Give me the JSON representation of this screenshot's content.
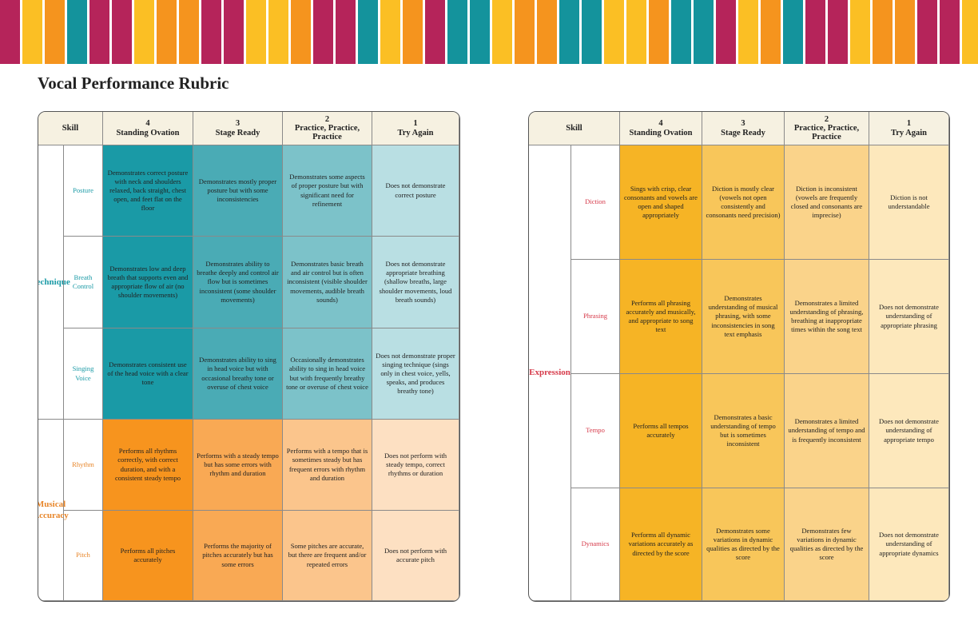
{
  "title": "Vocal Performance Rubric",
  "tables": [
    {
      "header": {
        "skill": "Skill",
        "levels": [
          {
            "number": 4,
            "label": "Standing Ovation"
          },
          {
            "number": 3,
            "label": "Stage Ready"
          },
          {
            "number": 2,
            "label": "Practice, Practice, Practice"
          },
          {
            "number": 1,
            "label": "Try Again"
          }
        ]
      },
      "groups": [
        {
          "name": "Technique",
          "rows": [
            {
              "skill": "Posture",
              "cells": [
                "Demonstrates correct posture with neck and shoulders relaxed, back straight, chest open, and feet flat on the floor",
                "Demonstrates mostly proper posture but with some inconsistencies",
                "Demonstrates some aspects of proper posture but with significant need for refinement",
                "Does not demonstrate correct posture"
              ]
            },
            {
              "skill": "Breath Control",
              "cells": [
                "Demonstrates low and deep breath that supports even and appropriate flow of air (no shoulder movements)",
                "Demonstrates ability to breathe deeply and control air flow but is sometimes inconsistent (some shoulder movements)",
                "Demonstrates basic breath and air control but is often inconsistent (visible shoulder movements, audible breath sounds)",
                "Does not demonstrate appropriate breathing (shallow breaths, large shoulder movements, loud breath sounds)"
              ]
            },
            {
              "skill": "Singing Voice",
              "cells": [
                "Demonstrates consistent use of the head voice with a clear tone",
                "Demonstrates ability to sing in head voice but with occasional breathy tone or overuse of chest voice",
                "Occasionally demonstrates ability to sing in head voice but with frequently breathy tone or overuse of chest voice",
                "Does not demonstrate proper singing technique (sings only in chest voice, yells, speaks, and produces breathy tone)"
              ]
            }
          ]
        },
        {
          "name": "Musical Accuracy",
          "rows": [
            {
              "skill": "Rhythm",
              "cells": [
                "Performs all rhythms correctly, with correct duration, and with a consistent steady tempo",
                "Performs with a steady tempo but has some errors with rhythm and duration",
                "Performs with a tempo that is sometimes steady but has frequent errors with rhythm and duration",
                "Does not perform with steady tempo, correct rhythms or duration"
              ]
            },
            {
              "skill": "Pitch",
              "cells": [
                "Performs all pitches accurately",
                "Performs the majority of pitches accurately but has some errors",
                "Some pitches are accurate, but there are frequent and/or repeated errors",
                "Does not perform with accurate pitch"
              ]
            }
          ]
        }
      ]
    },
    {
      "header": {
        "skill": "Skill",
        "levels": [
          {
            "number": 4,
            "label": "Standing Ovation"
          },
          {
            "number": 3,
            "label": "Stage Ready"
          },
          {
            "number": 2,
            "label": "Practice, Practice, Practice"
          },
          {
            "number": 1,
            "label": "Try Again"
          }
        ]
      },
      "groups": [
        {
          "name": "Expression",
          "rows": [
            {
              "skill": "Diction",
              "cells": [
                "Sings with crisp, clear consonants and vowels are open and shaped appropriately",
                "Diction is mostly clear (vowels not open consistently and consonants need precision)",
                "Diction is inconsistent (vowels are frequently closed and consonants are imprecise)",
                "Diction is not understandable"
              ]
            },
            {
              "skill": "Phrasing",
              "cells": [
                "Performs all phrasing accurately and musically, and appropriate to song text",
                "Demonstrates understanding of musical phrasing, with some inconsistencies in song text emphasis",
                "Demonstrates a limited understanding of phrasing, breathing at inappropriate times within the song text",
                "Does not demonstrate understanding of appropriate phrasing"
              ]
            },
            {
              "skill": "Tempo",
              "cells": [
                "Performs all tempos accurately",
                "Demonstrates a basic understanding of tempo but is sometimes inconsistent",
                "Demonstrates a limited understanding of tempo and is frequently inconsistent",
                "Does not demonstrate understanding of appropriate tempo"
              ]
            },
            {
              "skill": "Dynamics",
              "cells": [
                "Performs all dynamic variations accurately as directed by the score",
                "Demonstrates some variations in dynamic qualities as directed by the score",
                "Demonstrates few variations in dynamic qualities as directed by the score",
                "Does not demonstrate understanding of appropriate dynamics"
              ]
            }
          ]
        }
      ]
    }
  ]
}
